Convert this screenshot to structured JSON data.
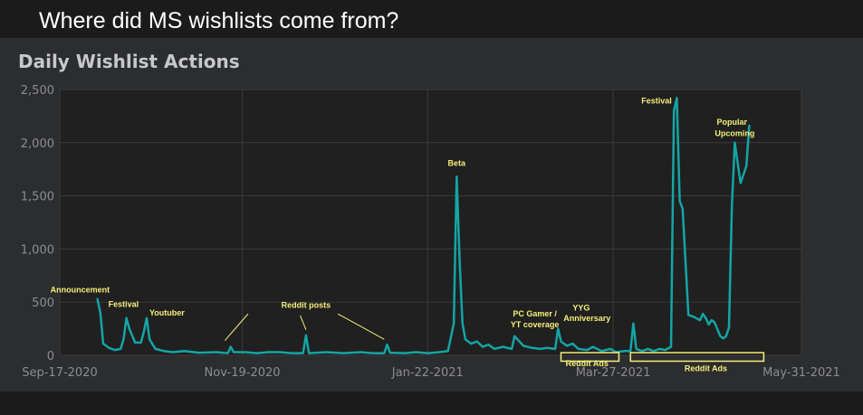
{
  "slide": {
    "title": "Where did MS wishlists come from?"
  },
  "chart_data": {
    "type": "line",
    "title": "Daily Wishlist Actions",
    "xlabel": "",
    "ylabel": "",
    "ylim": [
      0,
      2500
    ],
    "yticks": [
      0,
      500,
      1000,
      1500,
      2000,
      2500
    ],
    "ytick_labels": [
      "0",
      "500",
      "1,000",
      "1,500",
      "2,000",
      "2,500"
    ],
    "xlim": [
      "2020-09-17",
      "2021-05-31"
    ],
    "xticks": [
      "2020-09-17",
      "2020-11-19",
      "2021-01-22",
      "2021-03-27",
      "2021-05-31"
    ],
    "xtick_labels": [
      "Sep-17-2020",
      "Nov-19-2020",
      "Jan-22-2021",
      "Mar-27-2021",
      "May-31-2021"
    ],
    "grid": true,
    "line_color": "#14a5a5",
    "annotation_color": "#f5ef7a",
    "series": [
      {
        "name": "",
        "points": [
          [
            "2020-09-30",
            530
          ],
          [
            "2020-10-01",
            400
          ],
          [
            "2020-10-02",
            110
          ],
          [
            "2020-10-03",
            90
          ],
          [
            "2020-10-04",
            70
          ],
          [
            "2020-10-06",
            50
          ],
          [
            "2020-10-08",
            60
          ],
          [
            "2020-10-09",
            150
          ],
          [
            "2020-10-10",
            350
          ],
          [
            "2020-10-11",
            250
          ],
          [
            "2020-10-13",
            120
          ],
          [
            "2020-10-15",
            120
          ],
          [
            "2020-10-16",
            220
          ],
          [
            "2020-10-17",
            350
          ],
          [
            "2020-10-18",
            150
          ],
          [
            "2020-10-20",
            60
          ],
          [
            "2020-10-23",
            40
          ],
          [
            "2020-10-26",
            30
          ],
          [
            "2020-10-30",
            40
          ],
          [
            "2020-11-04",
            25
          ],
          [
            "2020-11-10",
            30
          ],
          [
            "2020-11-14",
            20
          ],
          [
            "2020-11-15",
            80
          ],
          [
            "2020-11-16",
            30
          ],
          [
            "2020-11-20",
            30
          ],
          [
            "2020-11-24",
            20
          ],
          [
            "2020-11-28",
            30
          ],
          [
            "2020-12-02",
            30
          ],
          [
            "2020-12-06",
            20
          ],
          [
            "2020-12-10",
            20
          ],
          [
            "2020-12-11",
            190
          ],
          [
            "2020-12-12",
            20
          ],
          [
            "2020-12-18",
            30
          ],
          [
            "2020-12-24",
            20
          ],
          [
            "2020-12-30",
            30
          ],
          [
            "2021-01-03",
            20
          ],
          [
            "2021-01-07",
            20
          ],
          [
            "2021-01-08",
            100
          ],
          [
            "2021-01-09",
            25
          ],
          [
            "2021-01-14",
            20
          ],
          [
            "2021-01-18",
            30
          ],
          [
            "2021-01-22",
            20
          ],
          [
            "2021-01-26",
            30
          ],
          [
            "2021-01-29",
            40
          ],
          [
            "2021-01-31",
            300
          ],
          [
            "2021-02-01",
            1680
          ],
          [
            "2021-02-02",
            900
          ],
          [
            "2021-02-03",
            300
          ],
          [
            "2021-02-04",
            150
          ],
          [
            "2021-02-06",
            110
          ],
          [
            "2021-02-08",
            130
          ],
          [
            "2021-02-10",
            80
          ],
          [
            "2021-02-12",
            100
          ],
          [
            "2021-02-14",
            60
          ],
          [
            "2021-02-17",
            80
          ],
          [
            "2021-02-20",
            60
          ],
          [
            "2021-02-21",
            180
          ],
          [
            "2021-02-22",
            150
          ],
          [
            "2021-02-24",
            90
          ],
          [
            "2021-02-27",
            70
          ],
          [
            "2021-03-02",
            60
          ],
          [
            "2021-03-04",
            70
          ],
          [
            "2021-03-07",
            60
          ],
          [
            "2021-03-08",
            250
          ],
          [
            "2021-03-09",
            130
          ],
          [
            "2021-03-11",
            90
          ],
          [
            "2021-03-13",
            110
          ],
          [
            "2021-03-15",
            60
          ],
          [
            "2021-03-18",
            50
          ],
          [
            "2021-03-20",
            80
          ],
          [
            "2021-03-23",
            40
          ],
          [
            "2021-03-26",
            60
          ],
          [
            "2021-03-28",
            30
          ],
          [
            "2021-03-31",
            40
          ],
          [
            "2021-04-02",
            40
          ],
          [
            "2021-04-03",
            300
          ],
          [
            "2021-04-04",
            60
          ],
          [
            "2021-04-06",
            40
          ],
          [
            "2021-04-08",
            60
          ],
          [
            "2021-04-10",
            40
          ],
          [
            "2021-04-12",
            60
          ],
          [
            "2021-04-14",
            50
          ],
          [
            "2021-04-16",
            80
          ],
          [
            "2021-04-17",
            2300
          ],
          [
            "2021-04-18",
            2420
          ],
          [
            "2021-04-19",
            1450
          ],
          [
            "2021-04-20",
            1380
          ],
          [
            "2021-04-22",
            380
          ],
          [
            "2021-04-24",
            360
          ],
          [
            "2021-04-26",
            330
          ],
          [
            "2021-04-27",
            390
          ],
          [
            "2021-04-28",
            350
          ],
          [
            "2021-04-29",
            290
          ],
          [
            "2021-04-30",
            330
          ],
          [
            "2021-05-01",
            310
          ],
          [
            "2021-05-03",
            180
          ],
          [
            "2021-05-04",
            160
          ],
          [
            "2021-05-05",
            180
          ],
          [
            "2021-05-06",
            260
          ],
          [
            "2021-05-07",
            1400
          ],
          [
            "2021-05-08",
            2000
          ],
          [
            "2021-05-10",
            1620
          ],
          [
            "2021-05-12",
            1780
          ],
          [
            "2021-05-13",
            2160
          ]
        ]
      }
    ],
    "annotations": [
      {
        "text": "Announcement",
        "date": "2020-09-24",
        "value": 590
      },
      {
        "text": "Festival",
        "date": "2020-10-09",
        "value": 455
      },
      {
        "text": "Youtuber",
        "date": "2020-10-24",
        "value": 375
      },
      {
        "text": "Reddit posts",
        "date": "2020-12-11",
        "value": 445
      },
      {
        "text": "Beta",
        "date": "2021-02-01",
        "value": 1780
      },
      {
        "text": "PC Gamer /",
        "date": "2021-02-28",
        "value": 365
      },
      {
        "text": "YT coverage",
        "date": "2021-02-28",
        "value": 265
      },
      {
        "text": "YYG",
        "date": "2021-03-16",
        "value": 420
      },
      {
        "text": "Anniversary",
        "date": "2021-03-18",
        "value": 325
      },
      {
        "text": "Reddit Ads",
        "date": "2021-03-18",
        "value": -100
      },
      {
        "text": "Festival",
        "date": "2021-04-11",
        "value": 2370
      },
      {
        "text": "Reddit Ads",
        "date": "2021-04-28",
        "value": -150
      },
      {
        "text": "Popular",
        "date": "2021-05-07",
        "value": 2170
      },
      {
        "text": "Upcoming",
        "date": "2021-05-08",
        "value": 2060
      }
    ],
    "callout_lines": [
      {
        "from": [
          "2020-11-21",
          390
        ],
        "to": [
          "2020-11-13",
          140
        ]
      },
      {
        "from": [
          "2020-12-09",
          375
        ],
        "to": [
          "2020-12-11",
          240
        ]
      },
      {
        "from": [
          "2020-12-22",
          390
        ],
        "to": [
          "2021-01-07",
          150
        ]
      }
    ],
    "ranges": [
      {
        "label": "Reddit Ads",
        "start": "2021-03-09",
        "end": "2021-03-29",
        "y_top": 25,
        "y_bottom": -55
      },
      {
        "label": "Reddit Ads",
        "start": "2021-04-02",
        "end": "2021-05-18",
        "y_top": 25,
        "y_bottom": -55
      }
    ]
  }
}
